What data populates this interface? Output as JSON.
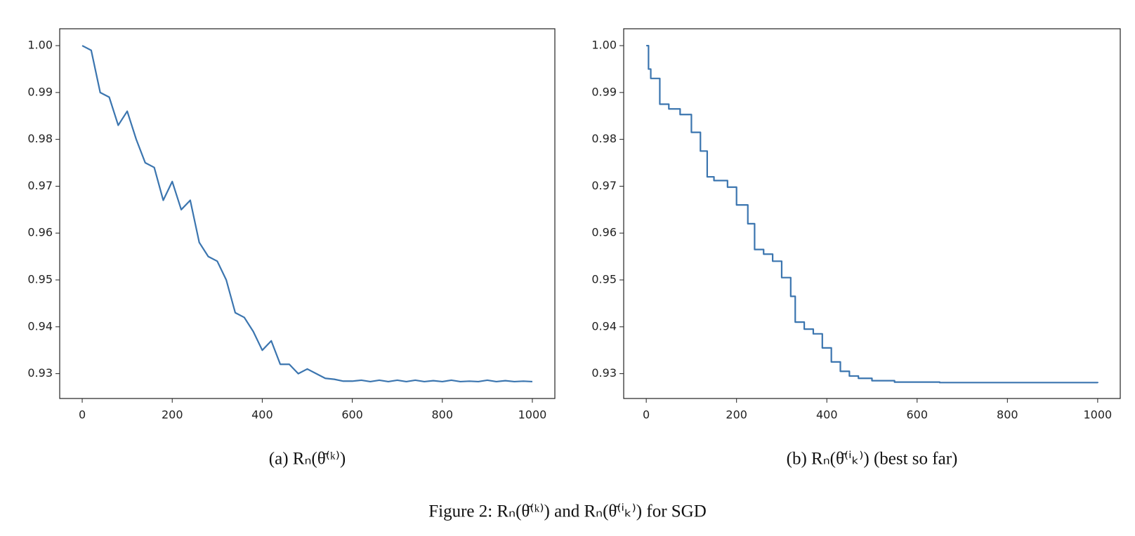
{
  "chart_data": [
    {
      "type": "line",
      "caption": "(a) Rₙ(θ̄⁽ᵏ⁾)",
      "color": "#3b75af",
      "x": [
        0,
        20,
        40,
        60,
        80,
        100,
        120,
        140,
        160,
        180,
        200,
        220,
        240,
        260,
        280,
        300,
        320,
        340,
        360,
        380,
        400,
        420,
        440,
        460,
        480,
        500,
        520,
        540,
        560,
        580,
        600,
        620,
        640,
        660,
        680,
        700,
        720,
        740,
        760,
        780,
        800,
        820,
        840,
        860,
        880,
        900,
        920,
        940,
        960,
        980,
        1000
      ],
      "values": [
        1.0,
        0.999,
        0.99,
        0.989,
        0.983,
        0.986,
        0.98,
        0.975,
        0.974,
        0.967,
        0.971,
        0.965,
        0.967,
        0.958,
        0.955,
        0.954,
        0.95,
        0.943,
        0.942,
        0.939,
        0.935,
        0.937,
        0.932,
        0.932,
        0.93,
        0.931,
        0.93,
        0.929,
        0.9288,
        0.9284,
        0.9284,
        0.9286,
        0.9283,
        0.9286,
        0.9283,
        0.9286,
        0.9283,
        0.9286,
        0.9283,
        0.9285,
        0.9283,
        0.9286,
        0.9283,
        0.9284,
        0.9283,
        0.9286,
        0.9283,
        0.9285,
        0.9283,
        0.9284,
        0.9283
      ],
      "xlim": [
        -50,
        1050
      ],
      "ylim": [
        0.9247,
        1.0036
      ],
      "xticks": [
        0,
        200,
        400,
        600,
        800,
        1000
      ],
      "yticks": [
        0.93,
        0.94,
        0.95,
        0.96,
        0.97,
        0.98,
        0.99,
        {
          "value": 1,
          "label": "1.00"
        }
      ]
    },
    {
      "type": "line",
      "caption": "(b) Rₙ(θ̄⁽ⁱₖ⁾) (best so far)",
      "color": "#3b75af",
      "drawstyle": "steps-post",
      "x": [
        0,
        5,
        10,
        30,
        50,
        75,
        100,
        120,
        135,
        150,
        180,
        200,
        225,
        240,
        260,
        280,
        300,
        320,
        330,
        350,
        370,
        390,
        410,
        430,
        450,
        470,
        500,
        550,
        650,
        1000
      ],
      "values": [
        1.0,
        0.995,
        0.993,
        0.9875,
        0.9865,
        0.9853,
        0.9815,
        0.9775,
        0.972,
        0.9712,
        0.9698,
        0.966,
        0.962,
        0.9565,
        0.9555,
        0.954,
        0.9505,
        0.9465,
        0.941,
        0.9395,
        0.9385,
        0.9355,
        0.9325,
        0.9305,
        0.9295,
        0.929,
        0.9285,
        0.9282,
        0.9281,
        0.928
      ],
      "xlim": [
        -50,
        1050
      ],
      "ylim": [
        0.9247,
        1.0036
      ],
      "xticks": [
        0,
        200,
        400,
        600,
        800,
        1000
      ],
      "yticks": [
        0.93,
        0.94,
        0.95,
        0.96,
        0.97,
        0.98,
        0.99,
        {
          "value": 1,
          "label": "1.00"
        }
      ]
    }
  ],
  "caption": "Figure 2: Rₙ(θ̄⁽ᵏ⁾) and Rₙ(θ̄⁽ⁱₖ⁾) for SGD"
}
